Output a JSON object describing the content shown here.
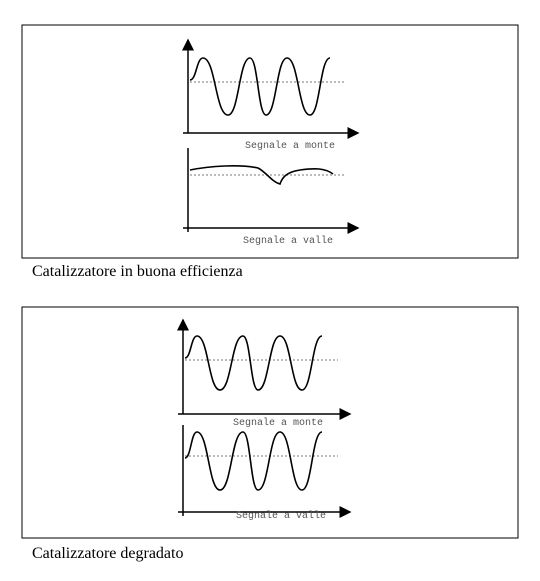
{
  "panels": [
    {
      "upper_label": "Segnale a monte",
      "lower_label": "Segnale a valle",
      "caption": "Catalizzatore in buona efficienza"
    },
    {
      "upper_label": "Segnale a monte",
      "lower_label": "Segnale a valle",
      "caption": "Catalizzatore degradato"
    }
  ]
}
